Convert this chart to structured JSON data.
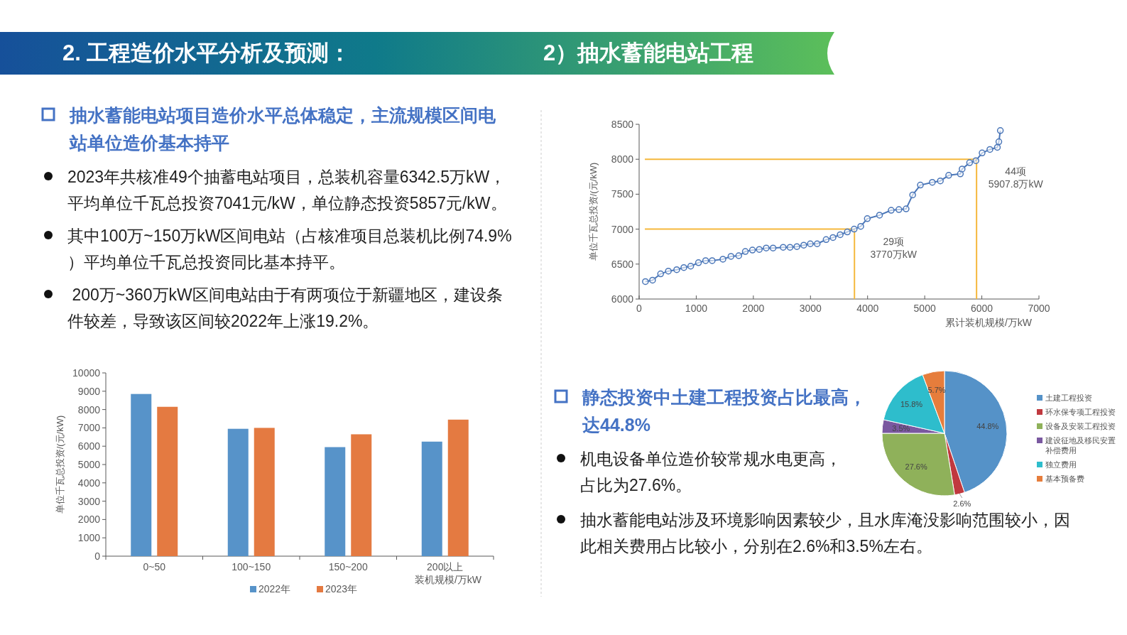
{
  "chart_data": [
    {
      "type": "other",
      "title": "2. 工程造价水平分析及预测：",
      "subtitle": "2）抽水蓄能电站工程"
    },
    {
      "type": "other",
      "title": "抽水蓄能电站项目造价水平总体稳定，主流规模区间电站单位造价基本持平",
      "annotations": [
        "2023年共核准49个抽蓄电站项目，总装机容量6342.5万kW，平均单位千瓦总投资7041元/kW，单位静态投资5857元/kW。",
        "其中100万~150万kW区间电站（占核准项目总装机比例74.9%）平均单位千瓦总投资同比基本持平。",
        " 200万~360万kW区间电站由于有两项位于新疆地区，建设条件较差，导致该区间较2022年上涨19.2%。"
      ]
    },
    {
      "type": "line",
      "xlabel": "累计装机规模/万kW",
      "ylabel": "单位千瓦总投资/(元/kW)",
      "xlim": [
        0,
        7000
      ],
      "xticks": [
        0,
        1000,
        2000,
        3000,
        4000,
        5000,
        6000,
        7000
      ],
      "ylim": [
        6000,
        8500
      ],
      "yticks": [
        6000,
        6500,
        7000,
        7500,
        8000,
        8500
      ],
      "marker": "circle",
      "grid": false,
      "series": [
        {
          "color": "#4a76b8",
          "x": [
            110,
            235,
            376,
            512,
            658,
            783,
            903,
            1039,
            1164,
            1279,
            1467,
            1608,
            1744,
            1859,
            1984,
            2104,
            2225,
            2345,
            2522,
            2642,
            2762,
            2882,
            2997,
            3117,
            3274,
            3394,
            3520,
            3645,
            3765,
            3880,
            3995,
            4209,
            4413,
            4548,
            4674,
            4789,
            4924,
            5133,
            5274,
            5420,
            5624,
            5655,
            5786,
            5896,
            6005,
            6141,
            6272,
            6298,
            6324
          ],
          "values": [
            6250,
            6270,
            6360,
            6400,
            6420,
            6450,
            6470,
            6520,
            6550,
            6550,
            6570,
            6610,
            6620,
            6680,
            6700,
            6710,
            6730,
            6730,
            6740,
            6740,
            6750,
            6770,
            6790,
            6790,
            6850,
            6880,
            6920,
            6960,
            7000,
            7040,
            7150,
            7200,
            7270,
            7280,
            7290,
            7490,
            7630,
            7670,
            7690,
            7770,
            7790,
            7860,
            7950,
            7980,
            8090,
            8140,
            8170,
            8250,
            8410
          ]
        },
        {
          "color": "#f5b83d",
          "marker": "none",
          "x": [
            100,
            3770,
            3770
          ],
          "values": [
            7000,
            7000,
            6000
          ]
        },
        {
          "color": "#f5b83d",
          "marker": "none",
          "x": [
            100,
            5907.8,
            5907.8
          ],
          "values": [
            8000,
            8000,
            6000
          ]
        }
      ],
      "annotations": [
        {
          "text": "29项\n3770万kW",
          "x": 3770,
          "y": 7000
        },
        {
          "text": "44项\n5907.8万kW",
          "x": 5907.8,
          "y": 8000
        }
      ]
    },
    {
      "type": "bar",
      "xlabel": "装机规模/万kW",
      "ylabel": "单位千瓦总投资/(元/kW)",
      "categories": [
        "0~50",
        "100~150",
        "150~200",
        "200以上"
      ],
      "ylim": [
        0,
        10000
      ],
      "yticks": [
        0,
        1000,
        2000,
        3000,
        4000,
        5000,
        6000,
        7000,
        8000,
        9000,
        10000
      ],
      "legend": "bottom",
      "grid": false,
      "series": [
        {
          "name": "2022年",
          "color": "#5793c9",
          "values": [
            8850,
            6950,
            5950,
            6250
          ]
        },
        {
          "name": "2023年",
          "color": "#e47a41",
          "values": [
            8150,
            7000,
            6650,
            7450
          ]
        }
      ]
    },
    {
      "type": "other",
      "title": "静态投资中土建工程投资占比最高，达44.8%",
      "annotations": [
        "机电设备单位造价较常规水电更高，占比为27.6%。",
        "抽水蓄能电站涉及环境影响因素较少，且水库淹没影响范围较小，因此相关费用占比较小，分别在2.6%和3.5%左右。"
      ]
    },
    {
      "type": "pie",
      "categories": [
        "土建工程投资",
        "环水保专项工程投资",
        "设备及安装工程投资",
        "建设征地及移民安置补偿费用",
        "独立费用",
        "基本预备费"
      ],
      "values": [
        44.8,
        2.6,
        27.6,
        3.5,
        15.8,
        5.7
      ],
      "colors": [
        "#5592c8",
        "#c0393f",
        "#8fb15a",
        "#7a58a0",
        "#2ebdcc",
        "#e67d3c"
      ],
      "value_labels": [
        "44.8%",
        "2.6%",
        "27.6%",
        "3.5%",
        "15.8%",
        "5.7%"
      ],
      "legend": "right"
    }
  ]
}
